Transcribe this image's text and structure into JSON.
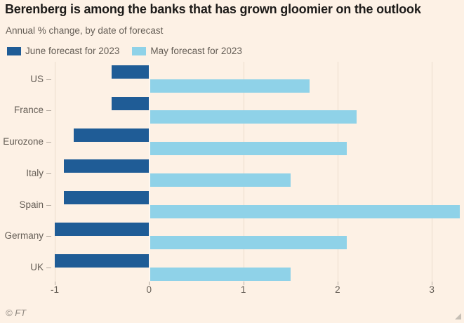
{
  "header": {
    "title": "Berenberg is among the banks that has grown gloomier on the outlook",
    "subtitle": "Annual % change, by date of forecast"
  },
  "footer": {
    "copyright": "© FT"
  },
  "colors": {
    "background": "#FDF1E5",
    "june_bar": "#1F5C96",
    "may_bar": "#8FD2E8",
    "title_text": "#1D1B19",
    "muted_text": "#655E56",
    "gridline": "#EBDCCC",
    "zero_line": "#FFFDF9"
  },
  "chart_data": {
    "type": "bar",
    "orientation": "horizontal",
    "title": "Berenberg is among the banks that has grown gloomier on the outlook",
    "subtitle": "Annual % change, by date of forecast",
    "categories": [
      "US",
      "France",
      "Eurozone",
      "Italy",
      "Spain",
      "Germany",
      "UK"
    ],
    "series": [
      {
        "name": "June forecast for 2023",
        "color": "#1F5C96",
        "values": [
          -0.4,
          -0.4,
          -0.8,
          -0.9,
          -0.9,
          -1.0,
          -1.0
        ]
      },
      {
        "name": "May forecast for 2023",
        "color": "#8FD2E8",
        "values": [
          1.7,
          2.2,
          2.1,
          1.5,
          3.3,
          2.1,
          1.5
        ]
      }
    ],
    "xlabel": "",
    "ylabel": "",
    "xlim": [
      -1,
      3.35
    ],
    "xticks": [
      -1,
      0,
      1,
      2,
      3
    ],
    "grid": "vertical",
    "legend_position": "top",
    "source_note": "© FT"
  }
}
